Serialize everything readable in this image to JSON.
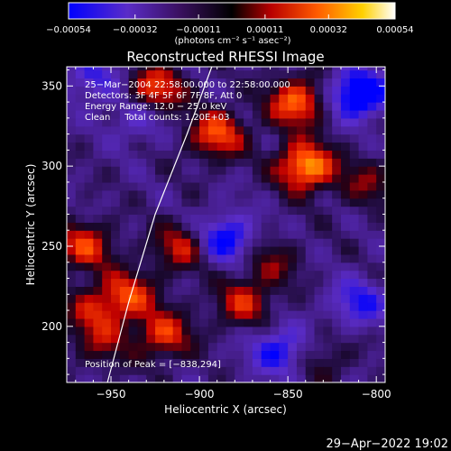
{
  "chart_data": {
    "type": "heatmap",
    "title": "Reconstructed RHESSI Image",
    "xlabel": "Heliocentric X (arcsec)",
    "ylabel": "Heliocentric Y (arcsec)",
    "xlim": [
      -975,
      -795
    ],
    "ylim": [
      165,
      362
    ],
    "xticks": [
      -950,
      -900,
      -850,
      -800
    ],
    "xtick_labels": [
      "−950",
      "−900",
      "−850",
      "−800"
    ],
    "yticks": [
      200,
      250,
      300,
      350
    ],
    "ytick_labels": [
      "200",
      "250",
      "300",
      "350"
    ],
    "colorbar": {
      "min": -0.00054,
      "max": 0.00054,
      "ticks": [
        -0.00054,
        -0.00032,
        -0.00011,
        0.00011,
        0.00032,
        0.00054
      ],
      "tick_labels": [
        "−0.00054",
        "−0.00032",
        "−0.00011",
        "0.00011",
        "0.00032",
        "0.00054"
      ],
      "units_label": "(photons cm⁻² s⁻¹ asec⁻²)",
      "colors": [
        "#0000ff",
        "#6a2fb0",
        "#000000",
        "#cc0000",
        "#ff7a00",
        "#ffff40",
        "#ffffff"
      ]
    },
    "annotations": [
      "25−Mar−2004 22:58:00.000 to 22:58:00.000",
      "Detectors: 3F 4F 5F 6F 7F 8F, Att 0",
      "Energy Range: 12.0 − 25.0 keV",
      "Clean     Total counts: 1.20E+03"
    ],
    "peak_label": "Position of Peak = [−838,294]",
    "limb_curve": [
      [
        -952,
        165
      ],
      [
        -940,
        215
      ],
      [
        -925,
        270
      ],
      [
        -907,
        320
      ],
      [
        -893,
        362
      ]
    ],
    "hot_spots": [
      {
        "x": -840,
        "y": 300,
        "value": 0.00054
      },
      {
        "x": -845,
        "y": 340,
        "value": 0.00045
      },
      {
        "x": -890,
        "y": 320,
        "value": 0.0004
      },
      {
        "x": -925,
        "y": 348,
        "value": 0.0004
      },
      {
        "x": -965,
        "y": 250,
        "value": 0.00035
      },
      {
        "x": -910,
        "y": 250,
        "value": 0.0003
      },
      {
        "x": -940,
        "y": 220,
        "value": 0.00035
      },
      {
        "x": -920,
        "y": 195,
        "value": 0.00035
      },
      {
        "x": -875,
        "y": 215,
        "value": 0.0003
      },
      {
        "x": -860,
        "y": 240,
        "value": 0.0002
      },
      {
        "x": -830,
        "y": 180,
        "value": 0.00015
      },
      {
        "x": -960,
        "y": 210,
        "value": 0.00025
      },
      {
        "x": -955,
        "y": 190,
        "value": 0.0002
      },
      {
        "x": -805,
        "y": 290,
        "value": 0.0002
      }
    ],
    "cold_spots": [
      {
        "x": -810,
        "y": 345,
        "value": -0.00054
      },
      {
        "x": -885,
        "y": 255,
        "value": -0.0004
      },
      {
        "x": -855,
        "y": 185,
        "value": -0.00035
      },
      {
        "x": -810,
        "y": 215,
        "value": -0.0003
      },
      {
        "x": -960,
        "y": 355,
        "value": -0.00025
      },
      {
        "x": -935,
        "y": 330,
        "value": -0.0002
      }
    ]
  },
  "footer": {
    "timestamp": "29−Apr−2022 19:02"
  }
}
